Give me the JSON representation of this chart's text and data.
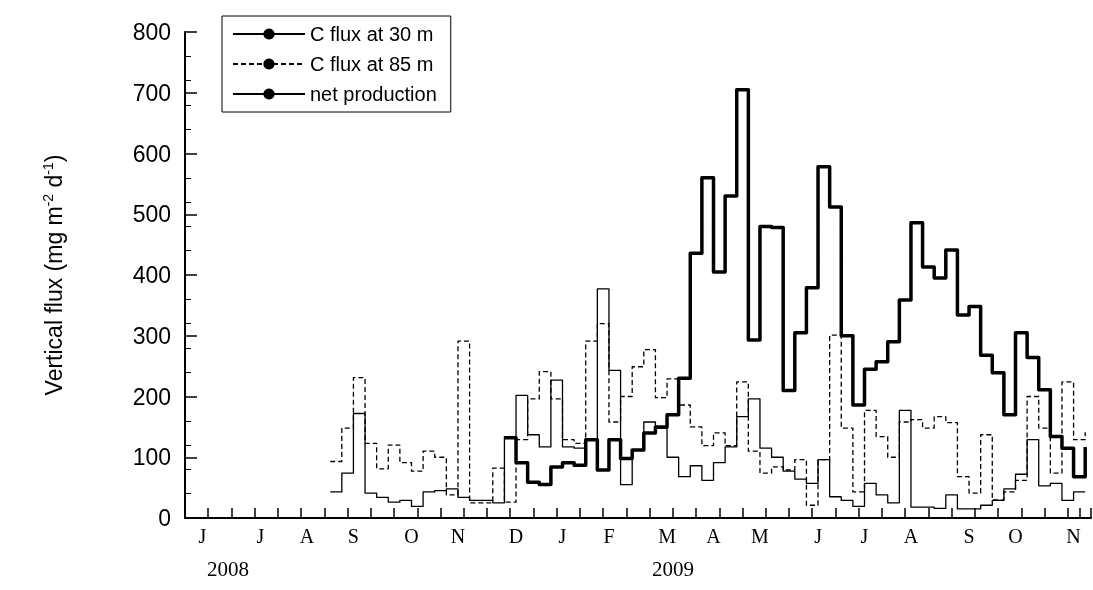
{
  "chart_data": {
    "type": "step",
    "ylabel": "Vertical flux (mg m$^{-2}$ d$^{-1}$)",
    "annotations": [
      "2008",
      "2009"
    ],
    "categories": [
      null,
      "J",
      null,
      null,
      null,
      null,
      "J",
      null,
      null,
      null,
      "A",
      null,
      null,
      null,
      "S",
      null,
      null,
      null,
      null,
      "O",
      null,
      null,
      null,
      "N",
      null,
      null,
      null,
      null,
      "D",
      null,
      null,
      null,
      "J",
      null,
      null,
      null,
      "F",
      null,
      null,
      null,
      null,
      "M",
      null,
      null,
      null,
      "A",
      null,
      null,
      null,
      "M",
      null,
      null,
      null,
      null,
      "J",
      null,
      null,
      null,
      "J",
      null,
      null,
      null,
      "A",
      null,
      null,
      null,
      null,
      "S",
      null,
      null,
      null,
      "O",
      null,
      null,
      null,
      null,
      "N",
      null
    ],
    "series": [
      {
        "name": "C flux at 30 m",
        "color": "#000000",
        "line_style": "solid",
        "values": [
          null,
          null,
          null,
          null,
          null,
          null,
          null,
          null,
          null,
          null,
          null,
          null,
          43,
          74,
          172,
          41,
          34,
          26,
          29,
          19,
          43,
          45,
          48,
          34,
          29,
          29,
          25,
          134,
          202,
          137,
          117,
          227,
          117,
          115,
          129,
          377,
          243,
          55,
          112,
          158,
          148,
          100,
          68,
          86,
          62,
          91,
          117,
          167,
          196,
          115,
          100,
          77,
          64,
          57,
          96,
          35,
          29,
          19,
          57,
          38,
          25,
          177,
          18,
          18,
          16,
          38,
          15,
          15,
          21,
          29,
          48,
          72,
          129,
          53,
          57,
          29,
          43,
          43
        ]
      },
      {
        "name": "C flux at 85 m",
        "color": "#000000",
        "line_style": "dashed",
        "values": [
          null,
          null,
          null,
          null,
          null,
          null,
          null,
          null,
          null,
          null,
          null,
          null,
          93,
          148,
          231,
          123,
          81,
          120,
          91,
          77,
          110,
          100,
          38,
          291,
          25,
          25,
          82,
          26,
          129,
          196,
          241,
          196,
          129,
          123,
          291,
          320,
          158,
          200,
          249,
          277,
          198,
          229,
          186,
          150,
          119,
          140,
          119,
          224,
          110,
          74,
          84,
          79,
          96,
          21,
          96,
          301,
          148,
          43,
          177,
          134,
          100,
          158,
          162,
          148,
          167,
          157,
          68,
          41,
          137,
          30,
          43,
          62,
          200,
          148,
          74,
          224,
          129,
          141
        ]
      },
      {
        "name": "net production",
        "color": "#000000",
        "line_style": "solid",
        "values": [
          null,
          null,
          null,
          null,
          null,
          null,
          null,
          null,
          null,
          null,
          null,
          null,
          null,
          null,
          null,
          null,
          null,
          null,
          null,
          null,
          null,
          null,
          null,
          null,
          null,
          null,
          null,
          132,
          91,
          59,
          55,
          84,
          91,
          87,
          129,
          79,
          129,
          98,
          112,
          140,
          150,
          170,
          230,
          436,
          560,
          405,
          530,
          705,
          293,
          480,
          478,
          210,
          305,
          379,
          578,
          512,
          300,
          186,
          245,
          257,
          290,
          359,
          486,
          413,
          395,
          441,
          334,
          348,
          268,
          239,
          170,
          305,
          264,
          211,
          134,
          115,
          68,
          117
        ]
      }
    ],
    "ylim": [
      0,
      800
    ],
    "yticks": [
      0,
      100,
      200,
      300,
      400,
      500,
      600,
      700,
      800
    ],
    "grid": false,
    "legend": "top left",
    "marker": "none"
  }
}
